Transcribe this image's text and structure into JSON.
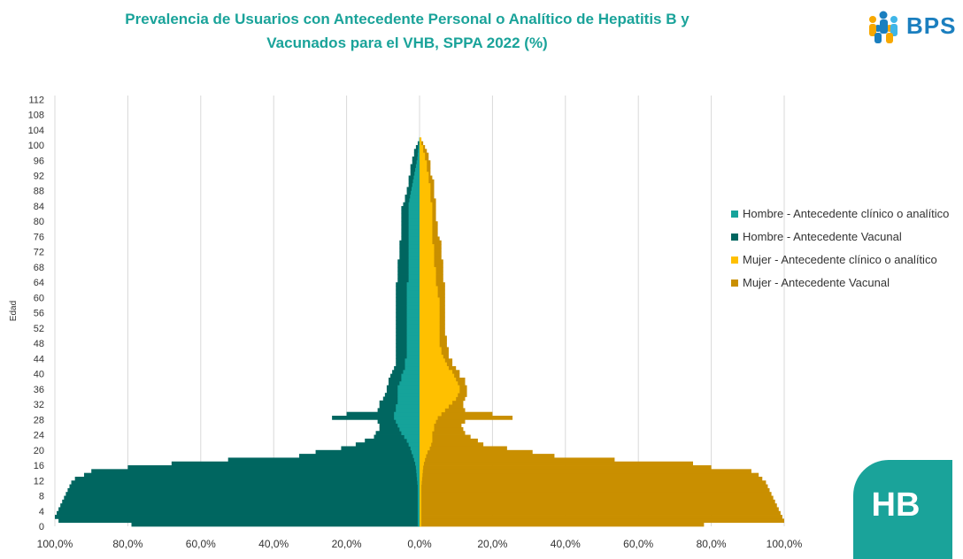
{
  "header": {
    "title_line1": "Prevalencia de Usuarios con Antecedente Personal o Analítico de Hepatitis B y",
    "title_line2": "Vacunados para el VHB, SPPA 2022 (%)"
  },
  "logo": {
    "text": "BPS",
    "icon": "people-group-icon",
    "color": "#1b7fbf"
  },
  "badge": {
    "text": "HB",
    "color": "#1aa39a"
  },
  "chart_data": {
    "type": "bar",
    "orientation": "horizontal-population-pyramid",
    "ylabel": "Edad",
    "xlabel": "",
    "xlim": [
      -100,
      100
    ],
    "x_ticks": [
      -100,
      -80,
      -60,
      -40,
      -20,
      0,
      20,
      40,
      60,
      80,
      100
    ],
    "x_tick_labels": [
      "100,0%",
      "80,0%",
      "60,0%",
      "40,0%",
      "20,0%",
      "0,0%",
      "20,0%",
      "40,0%",
      "60,0%",
      "80,0%",
      "100,0%"
    ],
    "y_ticks": [
      0,
      4,
      8,
      12,
      16,
      20,
      24,
      28,
      32,
      36,
      40,
      44,
      48,
      52,
      56,
      60,
      64,
      68,
      72,
      76,
      80,
      84,
      88,
      92,
      96,
      100,
      104,
      108,
      112
    ],
    "ylim": [
      0,
      113
    ],
    "grid": "vertical",
    "legend_position": "right",
    "series_note": "values are percentages per age; Hombre drawn to the left, Mujer to the right",
    "series": [
      {
        "name": "Hombre - Antecedente clínico o analítico",
        "color": "#15a39a",
        "side": "left",
        "values": [
          0.5,
          0.5,
          0.5,
          0.5,
          0.5,
          0.5,
          0.5,
          0.5,
          0.5,
          0.5,
          0.5,
          0.6,
          0.7,
          0.8,
          0.9,
          1,
          1.2,
          1.5,
          1.8,
          2.2,
          2.5,
          3,
          3.5,
          4.2,
          5,
          5.5,
          6,
          6.5,
          7,
          7,
          6.5,
          6.5,
          6,
          6,
          6,
          6,
          6,
          5.5,
          5,
          5,
          4.5,
          4,
          4,
          4,
          3.5,
          3.5,
          3.5,
          3.5,
          3.5,
          3.5,
          3.5,
          3.5,
          3.5,
          3.5,
          3.5,
          3.5,
          3.5,
          3.5,
          3.5,
          3.5,
          3.5,
          3.5,
          3.5,
          3.5,
          3,
          3,
          3,
          3,
          3,
          3,
          3,
          3,
          3,
          3,
          3,
          3,
          3,
          3,
          3,
          3,
          3,
          3,
          3,
          3,
          3,
          2.8,
          2.6,
          2.4,
          2.2,
          2,
          1.8,
          1.6,
          1.4,
          1.2,
          1,
          0.8,
          0.6,
          0.5,
          0.4,
          0.3,
          0.2,
          0.1,
          0
        ]
      },
      {
        "name": "Hombre - Antecedente Vacunal",
        "color": "#006660",
        "side": "left",
        "values": [
          79,
          99,
          100,
          99.5,
          99,
          98.5,
          98,
          97.5,
          97,
          96.5,
          96,
          95.5,
          94.5,
          92,
          90,
          80,
          68,
          52.5,
          33,
          28.5,
          21.5,
          17.5,
          15,
          12.5,
          12,
          11,
          11,
          11.5,
          24,
          20,
          11.5,
          11,
          11,
          10,
          9.5,
          9,
          9,
          8.5,
          8.5,
          8,
          7.5,
          7,
          6.5,
          6.5,
          6.5,
          6.5,
          6.5,
          6.5,
          6.5,
          6.5,
          6.5,
          6.5,
          6.5,
          6.5,
          6.5,
          6.5,
          6.5,
          6.5,
          6.5,
          6.5,
          6.5,
          6.5,
          6.5,
          6.5,
          6,
          6,
          6,
          6,
          6,
          6,
          5.5,
          5.5,
          5.5,
          5.5,
          5.5,
          5,
          5,
          5,
          5,
          5,
          5,
          5,
          5,
          5,
          4.5,
          4,
          4,
          3.5,
          3.5,
          3,
          3,
          3,
          2.5,
          2.5,
          2.5,
          2,
          2,
          1.5,
          1.5,
          1,
          0.5,
          0,
          0
        ]
      },
      {
        "name": "Mujer - Antecedente clínico o analítico",
        "color": "#ffc000",
        "side": "right",
        "values": [
          0.5,
          0.5,
          0.5,
          0.5,
          0.5,
          0.5,
          0.5,
          0.5,
          0.5,
          0.5,
          0.5,
          0.6,
          0.7,
          0.8,
          0.9,
          1,
          1.2,
          1.5,
          1.8,
          2.2,
          2.8,
          3.2,
          3.5,
          3.5,
          3.5,
          4,
          4,
          4.5,
          5,
          6,
          7,
          8,
          9,
          10,
          10.5,
          11,
          11,
          10.5,
          10,
          9.5,
          9,
          8,
          7.5,
          7,
          6.5,
          6,
          6,
          5.5,
          5.5,
          5.5,
          5.5,
          5.5,
          5.5,
          5.5,
          5.5,
          5.5,
          5.5,
          5.5,
          5.5,
          5.5,
          5,
          5,
          5,
          4.5,
          4.5,
          4.5,
          4.5,
          4.5,
          4,
          4,
          4,
          4,
          4,
          4,
          3.5,
          3.5,
          3.5,
          3.5,
          3.5,
          3.5,
          3.5,
          3.5,
          3.5,
          3.5,
          3.5,
          3,
          3,
          3,
          3,
          3,
          2.5,
          2.5,
          2.5,
          2,
          2,
          2,
          1.5,
          1.5,
          1,
          1,
          0.5,
          0.5,
          0
        ]
      },
      {
        "name": "Mujer - Antecedente Vacunal",
        "color": "#c98f00",
        "side": "right",
        "values": [
          78,
          100,
          99.5,
          99,
          98.5,
          98,
          97.5,
          97,
          96.5,
          96,
          95.5,
          95,
          94,
          93,
          91,
          80,
          75,
          53.5,
          37,
          31,
          24,
          17.5,
          16,
          14,
          12.5,
          12,
          11.5,
          12.5,
          25.5,
          20,
          12.5,
          12,
          12,
          12.5,
          13,
          13,
          13,
          12.5,
          12.5,
          11,
          11,
          10,
          9,
          9,
          8,
          8,
          8,
          7.5,
          7.5,
          7.5,
          7,
          7,
          7,
          7,
          7,
          7,
          7,
          7,
          7,
          7,
          7,
          7,
          7,
          7,
          6.5,
          6.5,
          6.5,
          6.5,
          6.5,
          6.5,
          6,
          6,
          6,
          6,
          6,
          5.5,
          5,
          5,
          5,
          5,
          4.5,
          4.5,
          4.5,
          4.5,
          4.5,
          4.5,
          4,
          4,
          4,
          4,
          4,
          3.5,
          3,
          3,
          3,
          3,
          2.5,
          2.5,
          2,
          1.5,
          1,
          0.5,
          0
        ]
      }
    ]
  }
}
